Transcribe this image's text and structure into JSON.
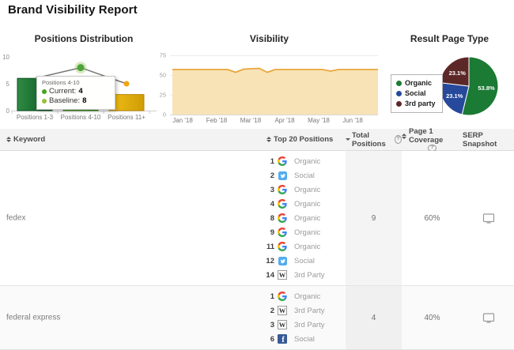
{
  "title": "Brand Visibility Report",
  "icons": {
    "help_glyph": "?"
  },
  "icon_colors": {
    "google_red": "#EA4335",
    "google_blue": "#4285F4",
    "google_yellow": "#FBBC05",
    "google_green": "#34A853",
    "twitter": "#55ACEE",
    "facebook": "#3A5A97",
    "wikipedia_border": "#9a9a9a",
    "monitor": "#9a9a9a"
  },
  "chart_data": [
    {
      "type": "bar",
      "title": "Positions Distribution",
      "categories": [
        "Positions 1-3",
        "Positions 4-10",
        "Positions 11+"
      ],
      "series": [
        {
          "name": "Current",
          "type": "bar",
          "values": [
            6,
            4,
            3
          ]
        },
        {
          "name": "Baseline",
          "type": "line",
          "values": [
            6,
            8,
            5
          ]
        }
      ],
      "ylim_left": [
        0,
        10
      ],
      "left_ticks": [
        0,
        5,
        10
      ],
      "bar_colors": [
        [
          "#2e8b43",
          "#0a5520"
        ],
        [
          "#6ab332",
          "#3f8f1c"
        ],
        [
          "#f0bf17",
          "#d09c05"
        ]
      ],
      "bar_strokes": [
        "#0a4f1e",
        "#357a16",
        "#b8880a"
      ],
      "line_color": "#737373",
      "markers": [
        null,
        {
          "color": "#4ca339",
          "r": 4.5,
          "halo": "rgba(139,195,74,0.35)"
        },
        {
          "color": "#f2a40c",
          "r": 3.5,
          "halo": null
        }
      ],
      "tooltip": {
        "title": "Positions 4-10",
        "rows": [
          {
            "label": "Current:",
            "value": 4,
            "dot": "#45a41f"
          },
          {
            "label": "Baseline:",
            "value": 8,
            "dot": "#97c03a"
          }
        ]
      }
    },
    {
      "type": "area",
      "title": "Visibility",
      "x_labels": [
        "Jan '18",
        "Feb '18",
        "Mar '18",
        "Apr '18",
        "May '18",
        "Jun '18"
      ],
      "values": [
        57,
        57,
        57,
        57,
        57,
        57,
        57,
        57,
        53.5,
        57.5,
        58,
        58.5,
        53.5,
        57,
        57,
        57,
        57,
        57,
        57,
        57,
        55,
        57,
        57,
        57,
        57,
        57,
        57
      ],
      "ylim": [
        0,
        75
      ],
      "ticks": [
        0,
        25,
        50,
        75
      ],
      "fill": "#f8e3b6",
      "stroke": "#e9a63a",
      "grid": true
    },
    {
      "type": "pie",
      "title": "Result Page Type",
      "slices": [
        {
          "label": "Organic",
          "value": 53.8,
          "color": "#1b7a34"
        },
        {
          "label": "Social",
          "value": 23.1,
          "color": "#27499B"
        },
        {
          "label": "3rd party",
          "value": 23.1,
          "color": "#5C2827"
        }
      ],
      "legend_position": "left",
      "label_format": "percent"
    }
  ],
  "table": {
    "columns": [
      {
        "label": "Keyword",
        "sort": "both"
      },
      {
        "label": "Top 20 Positions",
        "sort": "both"
      },
      {
        "label": "Total Positions",
        "sort": "desc",
        "help": true
      },
      {
        "label": "Page 1 Coverage",
        "sort": "both",
        "help": true
      },
      {
        "label": "SERP Snapshot",
        "sort": "none"
      }
    ],
    "rows": [
      {
        "keyword": "fedex",
        "total": 9,
        "coverage": "60%",
        "positions": [
          {
            "rank": 1,
            "source": "google",
            "label": "Organic"
          },
          {
            "rank": 2,
            "source": "twitter",
            "label": "Social"
          },
          {
            "rank": 3,
            "source": "google",
            "label": "Organic"
          },
          {
            "rank": 4,
            "source": "google",
            "label": "Organic"
          },
          {
            "rank": 8,
            "source": "google",
            "label": "Organic"
          },
          {
            "rank": 9,
            "source": "google",
            "label": "Organic"
          },
          {
            "rank": 11,
            "source": "google",
            "label": "Organic"
          },
          {
            "rank": 12,
            "source": "twitter",
            "label": "Social"
          },
          {
            "rank": 14,
            "source": "wikipedia",
            "label": "3rd Party"
          }
        ]
      },
      {
        "keyword": "federal express",
        "total": 4,
        "coverage": "40%",
        "positions": [
          {
            "rank": 1,
            "source": "google",
            "label": "Organic"
          },
          {
            "rank": 2,
            "source": "wikipedia",
            "label": "3rd Party"
          },
          {
            "rank": 3,
            "source": "wikipedia",
            "label": "3rd Party"
          },
          {
            "rank": 6,
            "source": "facebook",
            "label": "Social"
          }
        ]
      }
    ]
  }
}
